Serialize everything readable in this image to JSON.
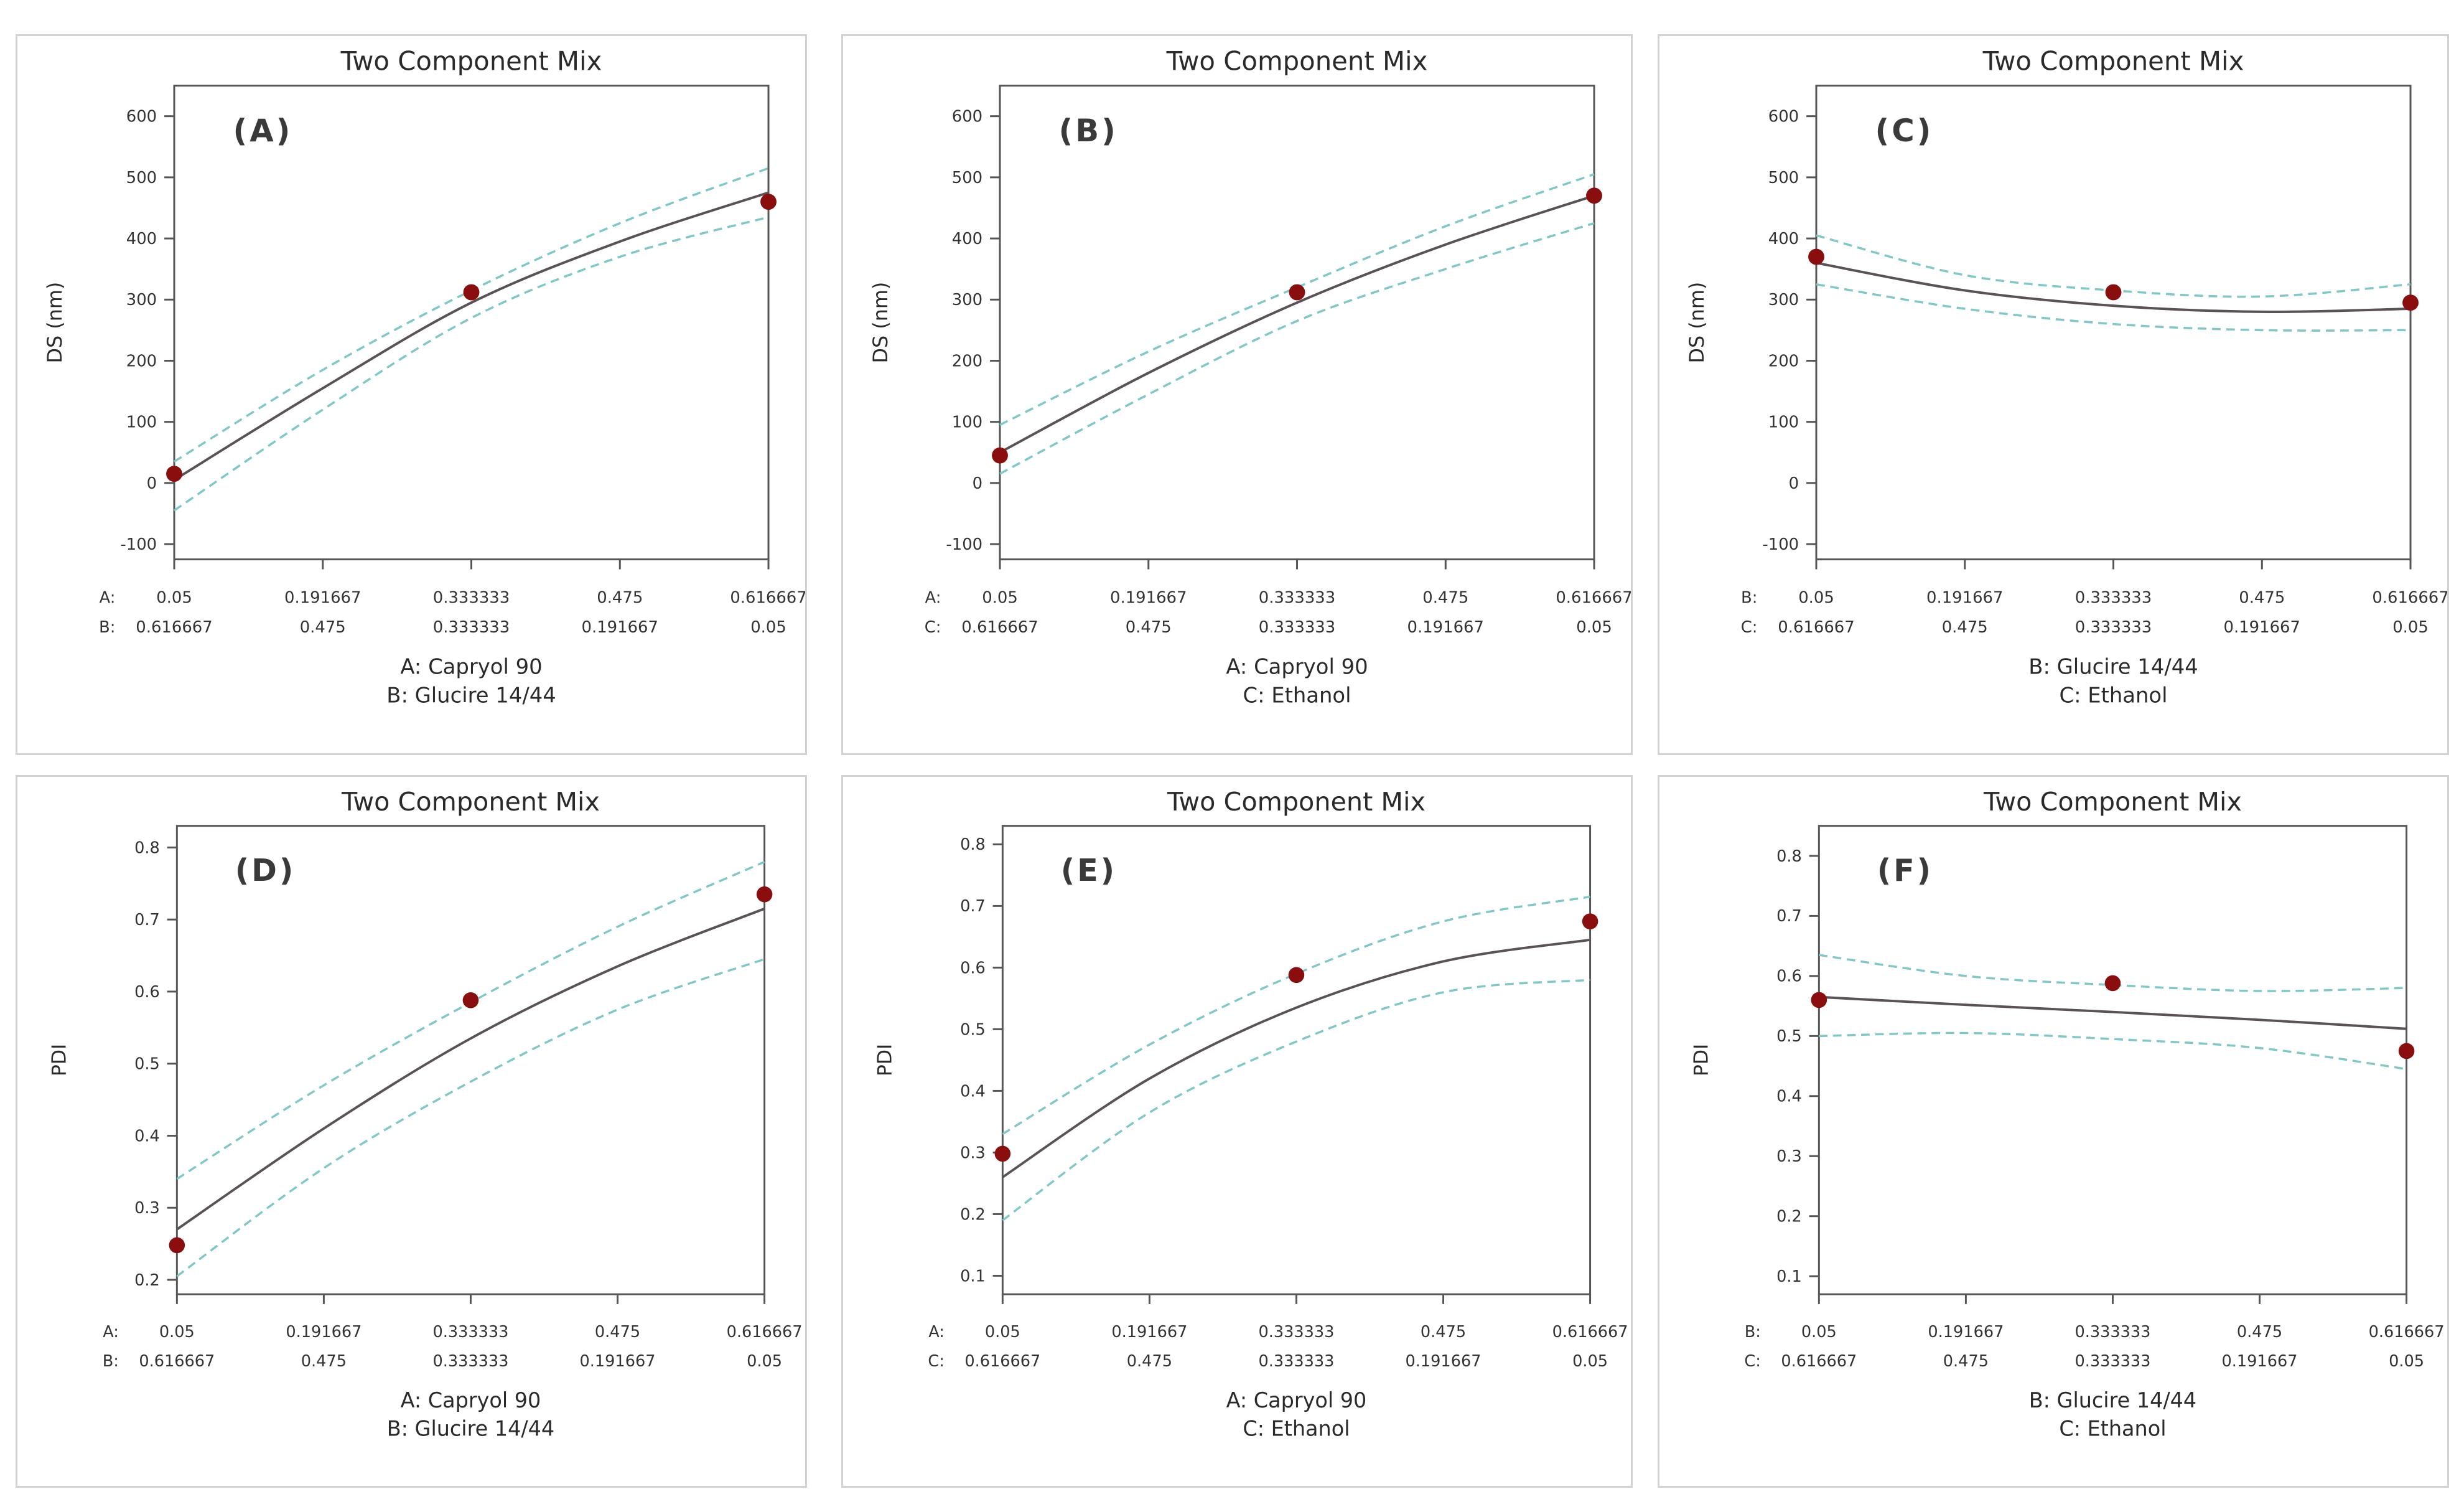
{
  "colors": {
    "fit_line": "#5a5257",
    "confidence_band": "#7ec8c8",
    "design_point": "#8b0e0e",
    "frame": "#555555",
    "panel_border": "#d2d2d2"
  },
  "chart_data": [
    {
      "type": "line",
      "panel_label": "(A)",
      "title": "Two Component Mix",
      "ylabel": "DS (nm)",
      "ylim": [
        -125,
        650
      ],
      "yticks": [
        -100,
        0,
        100,
        200,
        300,
        400,
        500,
        600
      ],
      "x_rows": [
        {
          "component": "A:",
          "ticks": [
            "0.05",
            "0.191667",
            "0.333333",
            "0.475",
            "0.616667"
          ]
        },
        {
          "component": "B:",
          "ticks": [
            "0.616667",
            "0.475",
            "0.333333",
            "0.191667",
            "0.05"
          ]
        }
      ],
      "xlabel_lines": [
        "A: Capryol 90",
        "B: Glucire 14/44"
      ],
      "x": [
        0.05,
        0.191667,
        0.333333,
        0.475,
        0.616667
      ],
      "series": [
        {
          "name": "fit",
          "values": [
            5,
            155,
            295,
            395,
            475
          ]
        },
        {
          "name": "upper",
          "values": [
            35,
            185,
            315,
            425,
            515
          ]
        },
        {
          "name": "lower",
          "values": [
            -45,
            120,
            270,
            370,
            435
          ]
        }
      ],
      "points": [
        [
          0.05,
          15
        ],
        [
          0.333333,
          312
        ],
        [
          0.616667,
          460
        ]
      ]
    },
    {
      "type": "line",
      "panel_label": "(B)",
      "title": "Two Component Mix",
      "ylabel": "DS (nm)",
      "ylim": [
        -125,
        650
      ],
      "yticks": [
        -100,
        0,
        100,
        200,
        300,
        400,
        500,
        600
      ],
      "x_rows": [
        {
          "component": "A:",
          "ticks": [
            "0.05",
            "0.191667",
            "0.333333",
            "0.475",
            "0.616667"
          ]
        },
        {
          "component": "C:",
          "ticks": [
            "0.616667",
            "0.475",
            "0.333333",
            "0.191667",
            "0.05"
          ]
        }
      ],
      "xlabel_lines": [
        "A: Capryol 90",
        "C: Ethanol"
      ],
      "x": [
        0.05,
        0.191667,
        0.333333,
        0.475,
        0.616667
      ],
      "series": [
        {
          "name": "fit",
          "values": [
            50,
            180,
            295,
            390,
            470
          ]
        },
        {
          "name": "upper",
          "values": [
            95,
            215,
            320,
            420,
            505
          ]
        },
        {
          "name": "lower",
          "values": [
            15,
            145,
            265,
            350,
            425
          ]
        }
      ],
      "points": [
        [
          0.05,
          45
        ],
        [
          0.333333,
          312
        ],
        [
          0.616667,
          470
        ]
      ]
    },
    {
      "type": "line",
      "panel_label": "(C)",
      "title": "Two Component Mix",
      "ylabel": "DS (nm)",
      "ylim": [
        -125,
        650
      ],
      "yticks": [
        -100,
        0,
        100,
        200,
        300,
        400,
        500,
        600
      ],
      "x_rows": [
        {
          "component": "B:",
          "ticks": [
            "0.05",
            "0.191667",
            "0.333333",
            "0.475",
            "0.616667"
          ]
        },
        {
          "component": "C:",
          "ticks": [
            "0.616667",
            "0.475",
            "0.333333",
            "0.191667",
            "0.05"
          ]
        }
      ],
      "xlabel_lines": [
        "B: Glucire 14/44",
        "C: Ethanol"
      ],
      "x": [
        0.05,
        0.191667,
        0.333333,
        0.475,
        0.616667
      ],
      "series": [
        {
          "name": "fit",
          "values": [
            360,
            315,
            290,
            280,
            285
          ]
        },
        {
          "name": "upper",
          "values": [
            405,
            340,
            315,
            305,
            325
          ]
        },
        {
          "name": "lower",
          "values": [
            325,
            285,
            260,
            250,
            250
          ]
        }
      ],
      "points": [
        [
          0.05,
          370
        ],
        [
          0.333333,
          312
        ],
        [
          0.616667,
          295
        ]
      ]
    },
    {
      "type": "line",
      "panel_label": "(D)",
      "title": "Two Component Mix",
      "ylabel": "PDI",
      "ylim": [
        0.18,
        0.83
      ],
      "yticks": [
        0.2,
        0.3,
        0.4,
        0.5,
        0.6,
        0.7,
        0.8
      ],
      "x_rows": [
        {
          "component": "A:",
          "ticks": [
            "0.05",
            "0.191667",
            "0.333333",
            "0.475",
            "0.616667"
          ]
        },
        {
          "component": "B:",
          "ticks": [
            "0.616667",
            "0.475",
            "0.333333",
            "0.191667",
            "0.05"
          ]
        }
      ],
      "xlabel_lines": [
        "A: Capryol 90",
        "B: Glucire 14/44"
      ],
      "x": [
        0.05,
        0.191667,
        0.333333,
        0.475,
        0.616667
      ],
      "series": [
        {
          "name": "fit",
          "values": [
            0.27,
            0.41,
            0.535,
            0.635,
            0.715
          ]
        },
        {
          "name": "upper",
          "values": [
            0.34,
            0.47,
            0.585,
            0.69,
            0.78
          ]
        },
        {
          "name": "lower",
          "values": [
            0.205,
            0.355,
            0.475,
            0.575,
            0.645
          ]
        }
      ],
      "points": [
        [
          0.05,
          0.248
        ],
        [
          0.333333,
          0.588
        ],
        [
          0.616667,
          0.735
        ]
      ]
    },
    {
      "type": "line",
      "panel_label": "(E)",
      "title": "Two Component Mix",
      "ylabel": "PDI",
      "ylim": [
        0.07,
        0.83
      ],
      "yticks": [
        0.1,
        0.2,
        0.3,
        0.4,
        0.5,
        0.6,
        0.7,
        0.8
      ],
      "x_rows": [
        {
          "component": "A:",
          "ticks": [
            "0.05",
            "0.191667",
            "0.333333",
            "0.475",
            "0.616667"
          ]
        },
        {
          "component": "C:",
          "ticks": [
            "0.616667",
            "0.475",
            "0.333333",
            "0.191667",
            "0.05"
          ]
        }
      ],
      "xlabel_lines": [
        "A: Capryol 90",
        "C: Ethanol"
      ],
      "x": [
        0.05,
        0.191667,
        0.333333,
        0.475,
        0.616667
      ],
      "series": [
        {
          "name": "fit",
          "values": [
            0.26,
            0.42,
            0.535,
            0.61,
            0.645
          ]
        },
        {
          "name": "upper",
          "values": [
            0.33,
            0.475,
            0.59,
            0.675,
            0.715
          ]
        },
        {
          "name": "lower",
          "values": [
            0.19,
            0.365,
            0.48,
            0.56,
            0.58
          ]
        }
      ],
      "points": [
        [
          0.05,
          0.298
        ],
        [
          0.333333,
          0.588
        ],
        [
          0.616667,
          0.675
        ]
      ]
    },
    {
      "type": "line",
      "panel_label": "(F)",
      "title": "Two Component Mix",
      "ylabel": "PDI",
      "ylim": [
        0.07,
        0.85
      ],
      "yticks": [
        0.1,
        0.2,
        0.3,
        0.4,
        0.5,
        0.6,
        0.7,
        0.8
      ],
      "x_rows": [
        {
          "component": "B:",
          "ticks": [
            "0.05",
            "0.191667",
            "0.333333",
            "0.475",
            "0.616667"
          ]
        },
        {
          "component": "C:",
          "ticks": [
            "0.616667",
            "0.475",
            "0.333333",
            "0.191667",
            "0.05"
          ]
        }
      ],
      "xlabel_lines": [
        "B: Glucire 14/44",
        "C: Ethanol"
      ],
      "x": [
        0.05,
        0.191667,
        0.333333,
        0.475,
        0.616667
      ],
      "series": [
        {
          "name": "fit",
          "values": [
            0.565,
            0.552,
            0.54,
            0.527,
            0.512
          ]
        },
        {
          "name": "upper",
          "values": [
            0.635,
            0.6,
            0.585,
            0.575,
            0.58
          ]
        },
        {
          "name": "lower",
          "values": [
            0.5,
            0.505,
            0.495,
            0.48,
            0.445
          ]
        }
      ],
      "points": [
        [
          0.05,
          0.56
        ],
        [
          0.333333,
          0.588
        ],
        [
          0.616667,
          0.475
        ]
      ]
    }
  ]
}
